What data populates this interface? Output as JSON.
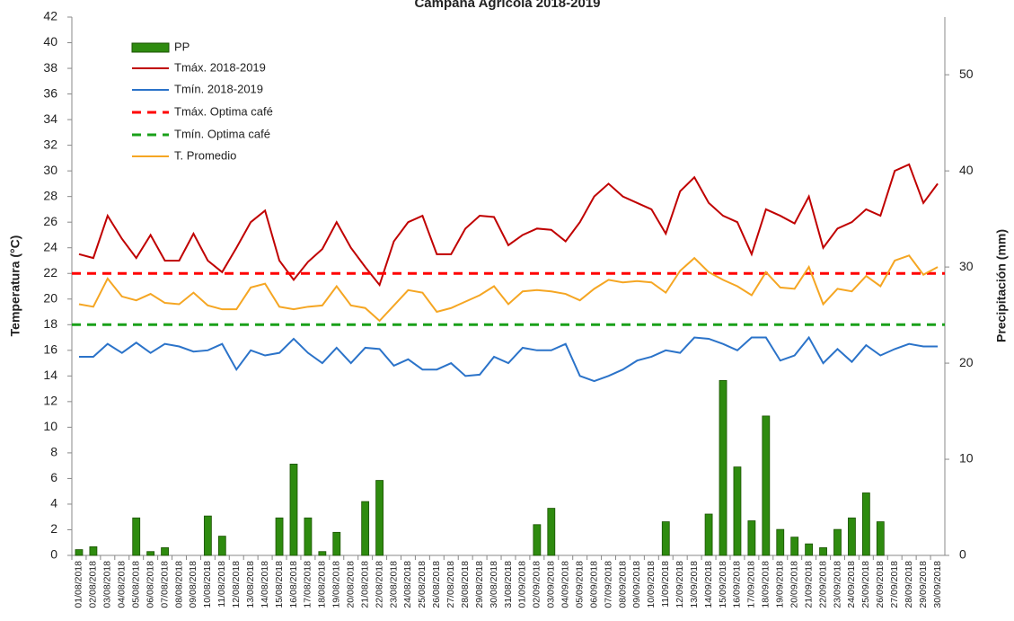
{
  "chart_data": {
    "type": "combo",
    "title": "Campaña Agrícola 2018-2019",
    "y_label": "Temperatura (°C)",
    "y2_label": "Precipitación (mm)",
    "categories": [
      "01/08/2018",
      "02/08/2018",
      "03/08/2018",
      "04/08/2018",
      "05/08/2018",
      "06/08/2018",
      "07/08/2018",
      "08/08/2018",
      "09/08/2018",
      "10/08/2018",
      "11/08/2018",
      "12/08/2018",
      "13/08/2018",
      "14/08/2018",
      "15/08/2018",
      "16/08/2018",
      "17/08/2018",
      "18/08/2018",
      "19/08/2018",
      "20/08/2018",
      "21/08/2018",
      "22/08/2018",
      "23/08/2018",
      "24/08/2018",
      "25/08/2018",
      "26/08/2018",
      "27/08/2018",
      "28/08/2018",
      "29/08/2018",
      "30/08/2018",
      "31/08/2018",
      "01/09/2018",
      "02/09/2018",
      "03/09/2018",
      "04/09/2018",
      "05/09/2018",
      "06/09/2018",
      "07/09/2018",
      "08/09/2018",
      "09/09/2018",
      "10/09/2018",
      "11/09/2018",
      "12/09/2018",
      "13/09/2018",
      "14/09/2018",
      "15/09/2018",
      "16/09/2018",
      "17/09/2018",
      "18/09/2018",
      "19/09/2018",
      "20/09/2018",
      "21/09/2018",
      "22/09/2018",
      "23/09/2018",
      "24/09/2018",
      "25/09/2018",
      "26/09/2018",
      "27/09/2018",
      "28/09/2018",
      "29/09/2018",
      "30/09/2018"
    ],
    "ylim": [
      0,
      42
    ],
    "yticks": [
      0,
      2,
      4,
      6,
      8,
      10,
      12,
      14,
      16,
      18,
      20,
      22,
      24,
      26,
      28,
      30,
      32,
      34,
      36,
      38,
      40,
      42
    ],
    "y2lim": [
      0,
      56
    ],
    "y2ticks": [
      0,
      10,
      20,
      30,
      40,
      50
    ],
    "series": [
      {
        "name": "PP",
        "type": "bar",
        "axis": "y2",
        "color": "#2e8b0f",
        "values": [
          0.6,
          0.9,
          0,
          0,
          3.9,
          0.4,
          0.8,
          0,
          0,
          4.1,
          2.0,
          0,
          0,
          0,
          3.9,
          9.5,
          3.9,
          0.4,
          2.4,
          0,
          5.6,
          7.8,
          0,
          0,
          0,
          0,
          0,
          0,
          0,
          0,
          0,
          0,
          3.2,
          4.9,
          0,
          0,
          0,
          0,
          0,
          0,
          0,
          3.5,
          0,
          0,
          4.3,
          18.2,
          9.2,
          3.6,
          14.5,
          2.7,
          1.9,
          1.2,
          0.8,
          2.7,
          3.9,
          6.5,
          3.5,
          0,
          0,
          0,
          0
        ]
      },
      {
        "name": "Tmáx. 2018-2019",
        "type": "line",
        "color": "#c00000",
        "values": [
          23.5,
          23.2,
          26.5,
          24.7,
          23.2,
          25.0,
          23.0,
          23.0,
          25.1,
          23.0,
          22.1,
          24.0,
          26.0,
          26.9,
          23.0,
          21.5,
          22.9,
          23.9,
          26.0,
          24.0,
          22.5,
          21.1,
          24.5,
          26.0,
          26.5,
          23.5,
          23.5,
          25.5,
          26.5,
          26.4,
          24.2,
          25.0,
          25.5,
          25.4,
          24.5,
          26.0,
          28.0,
          29.0,
          28.0,
          27.5,
          27.0,
          25.1,
          28.4,
          29.5,
          27.5,
          26.5,
          26.0,
          23.5,
          27.0,
          26.5,
          25.9,
          28.0,
          24.0,
          25.5,
          26.0,
          27.0,
          26.5,
          30.0,
          30.5,
          27.5,
          29.0
        ]
      },
      {
        "name": "Tmín. 2018-2019",
        "type": "line",
        "color": "#2b73c9",
        "values": [
          15.5,
          15.5,
          16.5,
          15.8,
          16.6,
          15.8,
          16.5,
          16.3,
          15.9,
          16.0,
          16.5,
          14.5,
          16.0,
          15.6,
          15.8,
          16.9,
          15.8,
          15.0,
          16.2,
          15.0,
          16.2,
          16.1,
          14.8,
          15.3,
          14.5,
          14.5,
          15.0,
          14.0,
          14.1,
          15.5,
          15.0,
          16.2,
          16.0,
          16.0,
          16.5,
          14.0,
          13.6,
          14.0,
          14.5,
          15.2,
          15.5,
          16.0,
          15.8,
          17.0,
          16.9,
          16.5,
          16.0,
          17.0,
          17.0,
          15.2,
          15.6,
          17.0,
          15.0,
          16.1,
          15.1,
          16.4,
          15.6,
          16.1,
          16.5,
          16.3,
          16.3
        ]
      },
      {
        "name": "Tmáx. Optima café",
        "type": "hline",
        "color": "#ff0000",
        "value": 22
      },
      {
        "name": "Tmín. Optima café",
        "type": "hline",
        "color": "#1aa01a",
        "value": 18
      },
      {
        "name": "T. Promedio",
        "type": "line",
        "color": "#f5a623",
        "values": [
          19.6,
          19.4,
          21.6,
          20.2,
          19.9,
          20.4,
          19.7,
          19.6,
          20.5,
          19.5,
          19.2,
          19.2,
          20.9,
          21.2,
          19.4,
          19.2,
          19.4,
          19.5,
          21.0,
          19.5,
          19.3,
          18.3,
          19.5,
          20.7,
          20.5,
          19.0,
          19.3,
          19.8,
          20.3,
          21.0,
          19.6,
          20.6,
          20.7,
          20.6,
          20.4,
          19.9,
          20.8,
          21.5,
          21.3,
          21.4,
          21.3,
          20.5,
          22.2,
          23.2,
          22.1,
          21.5,
          21.0,
          20.3,
          22.1,
          20.9,
          20.8,
          22.5,
          19.6,
          20.8,
          20.6,
          21.8,
          21.0,
          23.0,
          23.4,
          21.9,
          22.5
        ]
      }
    ]
  }
}
